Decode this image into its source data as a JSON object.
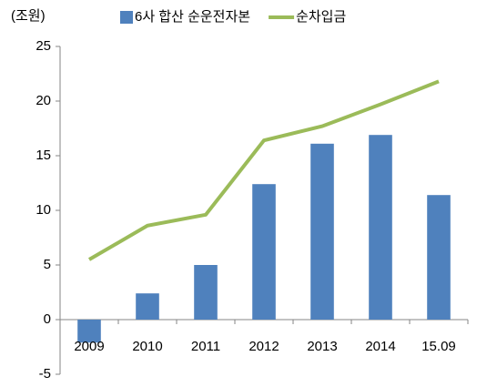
{
  "chart_data": {
    "type": "combo",
    "unit_label": "(조원)",
    "categories": [
      "2009",
      "2010",
      "2011",
      "2012",
      "2013",
      "2014",
      "15.09"
    ],
    "series": [
      {
        "name": "6사 합산 순운전자본",
        "type": "bar",
        "color": "#4f81bd",
        "values": [
          -2.1,
          2.4,
          5.0,
          12.4,
          16.1,
          16.9,
          11.4
        ]
      },
      {
        "name": "순차입금",
        "type": "line",
        "color": "#9bbb59",
        "values": [
          5.5,
          8.6,
          9.6,
          16.4,
          17.7,
          19.7,
          21.8
        ]
      }
    ],
    "ylim": [
      -5,
      25
    ],
    "yticks": [
      -5,
      0,
      5,
      10,
      15,
      20,
      25
    ],
    "grid": false
  }
}
